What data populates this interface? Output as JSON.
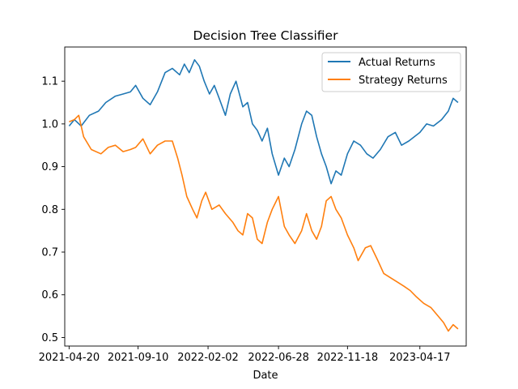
{
  "chart_data": {
    "type": "line",
    "title": "Decision Tree Classifier",
    "xlabel": "Date",
    "ylabel": "",
    "x_ticks": [
      "2021-04-20",
      "2021-09-10",
      "2022-02-02",
      "2022-06-28",
      "2022-11-18",
      "2023-04-17"
    ],
    "y_ticks": [
      "0.5",
      "0.6",
      "0.7",
      "0.8",
      "0.9",
      "1.0",
      "1.1"
    ],
    "xlim": [
      "2021-04-11",
      "2023-07-22"
    ],
    "ylim": [
      0.48,
      1.18
    ],
    "grid": false,
    "legend_position": "top-right",
    "series": [
      {
        "name": "Actual Returns",
        "color": "#1f77b4",
        "points": [
          [
            "2021-04-20",
            0.995
          ],
          [
            "2021-05-01",
            1.01
          ],
          [
            "2021-05-15",
            0.995
          ],
          [
            "2021-06-01",
            1.02
          ],
          [
            "2021-06-20",
            1.03
          ],
          [
            "2021-07-05",
            1.05
          ],
          [
            "2021-07-25",
            1.065
          ],
          [
            "2021-08-10",
            1.07
          ],
          [
            "2021-08-25",
            1.075
          ],
          [
            "2021-09-05",
            1.09
          ],
          [
            "2021-09-20",
            1.06
          ],
          [
            "2021-10-05",
            1.045
          ],
          [
            "2021-10-20",
            1.075
          ],
          [
            "2021-11-05",
            1.12
          ],
          [
            "2021-11-20",
            1.13
          ],
          [
            "2021-12-05",
            1.115
          ],
          [
            "2021-12-15",
            1.14
          ],
          [
            "2021-12-25",
            1.12
          ],
          [
            "2022-01-05",
            1.15
          ],
          [
            "2022-01-15",
            1.135
          ],
          [
            "2022-01-25",
            1.1
          ],
          [
            "2022-02-05",
            1.07
          ],
          [
            "2022-02-15",
            1.09
          ],
          [
            "2022-02-25",
            1.06
          ],
          [
            "2022-03-10",
            1.02
          ],
          [
            "2022-03-20",
            1.07
          ],
          [
            "2022-04-01",
            1.1
          ],
          [
            "2022-04-15",
            1.04
          ],
          [
            "2022-04-25",
            1.05
          ],
          [
            "2022-05-05",
            1.0
          ],
          [
            "2022-05-15",
            0.985
          ],
          [
            "2022-05-25",
            0.96
          ],
          [
            "2022-06-05",
            0.99
          ],
          [
            "2022-06-15",
            0.93
          ],
          [
            "2022-06-28",
            0.88
          ],
          [
            "2022-07-10",
            0.92
          ],
          [
            "2022-07-20",
            0.9
          ],
          [
            "2022-08-01",
            0.94
          ],
          [
            "2022-08-15",
            1.0
          ],
          [
            "2022-08-25",
            1.03
          ],
          [
            "2022-09-05",
            1.02
          ],
          [
            "2022-09-15",
            0.97
          ],
          [
            "2022-09-25",
            0.93
          ],
          [
            "2022-10-05",
            0.9
          ],
          [
            "2022-10-15",
            0.86
          ],
          [
            "2022-10-25",
            0.89
          ],
          [
            "2022-11-05",
            0.88
          ],
          [
            "2022-11-18",
            0.93
          ],
          [
            "2022-12-01",
            0.96
          ],
          [
            "2022-12-15",
            0.95
          ],
          [
            "2022-12-28",
            0.93
          ],
          [
            "2023-01-10",
            0.92
          ],
          [
            "2023-01-25",
            0.94
          ],
          [
            "2023-02-10",
            0.97
          ],
          [
            "2023-02-25",
            0.98
          ],
          [
            "2023-03-10",
            0.95
          ],
          [
            "2023-03-25",
            0.96
          ],
          [
            "2023-04-17",
            0.98
          ],
          [
            "2023-05-01",
            1.0
          ],
          [
            "2023-05-15",
            0.995
          ],
          [
            "2023-06-01",
            1.01
          ],
          [
            "2023-06-15",
            1.03
          ],
          [
            "2023-06-25",
            1.06
          ],
          [
            "2023-07-05",
            1.05
          ]
        ]
      },
      {
        "name": "Strategy Returns",
        "color": "#ff7f0e",
        "points": [
          [
            "2021-04-20",
            1.005
          ],
          [
            "2021-05-01",
            1.01
          ],
          [
            "2021-05-10",
            1.02
          ],
          [
            "2021-05-20",
            0.97
          ],
          [
            "2021-06-05",
            0.94
          ],
          [
            "2021-06-25",
            0.93
          ],
          [
            "2021-07-10",
            0.945
          ],
          [
            "2021-07-25",
            0.95
          ],
          [
            "2021-08-10",
            0.935
          ],
          [
            "2021-08-25",
            0.94
          ],
          [
            "2021-09-05",
            0.945
          ],
          [
            "2021-09-20",
            0.965
          ],
          [
            "2021-10-05",
            0.93
          ],
          [
            "2021-10-20",
            0.95
          ],
          [
            "2021-11-05",
            0.96
          ],
          [
            "2021-11-20",
            0.96
          ],
          [
            "2021-12-01",
            0.92
          ],
          [
            "2021-12-10",
            0.88
          ],
          [
            "2021-12-20",
            0.83
          ],
          [
            "2022-01-01",
            0.8
          ],
          [
            "2022-01-10",
            0.78
          ],
          [
            "2022-01-20",
            0.82
          ],
          [
            "2022-01-28",
            0.84
          ],
          [
            "2022-02-10",
            0.8
          ],
          [
            "2022-02-25",
            0.81
          ],
          [
            "2022-03-10",
            0.79
          ],
          [
            "2022-03-25",
            0.77
          ],
          [
            "2022-04-05",
            0.75
          ],
          [
            "2022-04-15",
            0.74
          ],
          [
            "2022-04-25",
            0.79
          ],
          [
            "2022-05-05",
            0.78
          ],
          [
            "2022-05-15",
            0.73
          ],
          [
            "2022-05-25",
            0.72
          ],
          [
            "2022-06-05",
            0.77
          ],
          [
            "2022-06-15",
            0.8
          ],
          [
            "2022-06-28",
            0.83
          ],
          [
            "2022-07-10",
            0.76
          ],
          [
            "2022-07-20",
            0.74
          ],
          [
            "2022-08-01",
            0.72
          ],
          [
            "2022-08-15",
            0.75
          ],
          [
            "2022-08-25",
            0.79
          ],
          [
            "2022-09-05",
            0.75
          ],
          [
            "2022-09-15",
            0.73
          ],
          [
            "2022-09-25",
            0.76
          ],
          [
            "2022-10-05",
            0.82
          ],
          [
            "2022-10-15",
            0.83
          ],
          [
            "2022-10-25",
            0.8
          ],
          [
            "2022-11-05",
            0.78
          ],
          [
            "2022-11-18",
            0.74
          ],
          [
            "2022-12-01",
            0.71
          ],
          [
            "2022-12-10",
            0.68
          ],
          [
            "2022-12-25",
            0.71
          ],
          [
            "2023-01-05",
            0.715
          ],
          [
            "2023-01-20",
            0.68
          ],
          [
            "2023-02-01",
            0.65
          ],
          [
            "2023-02-15",
            0.64
          ],
          [
            "2023-03-01",
            0.63
          ],
          [
            "2023-03-15",
            0.62
          ],
          [
            "2023-03-28",
            0.61
          ],
          [
            "2023-04-10",
            0.595
          ],
          [
            "2023-04-25",
            0.58
          ],
          [
            "2023-05-10",
            0.57
          ],
          [
            "2023-05-25",
            0.55
          ],
          [
            "2023-06-05",
            0.535
          ],
          [
            "2023-06-15",
            0.515
          ],
          [
            "2023-06-25",
            0.53
          ],
          [
            "2023-07-05",
            0.52
          ]
        ]
      }
    ]
  }
}
